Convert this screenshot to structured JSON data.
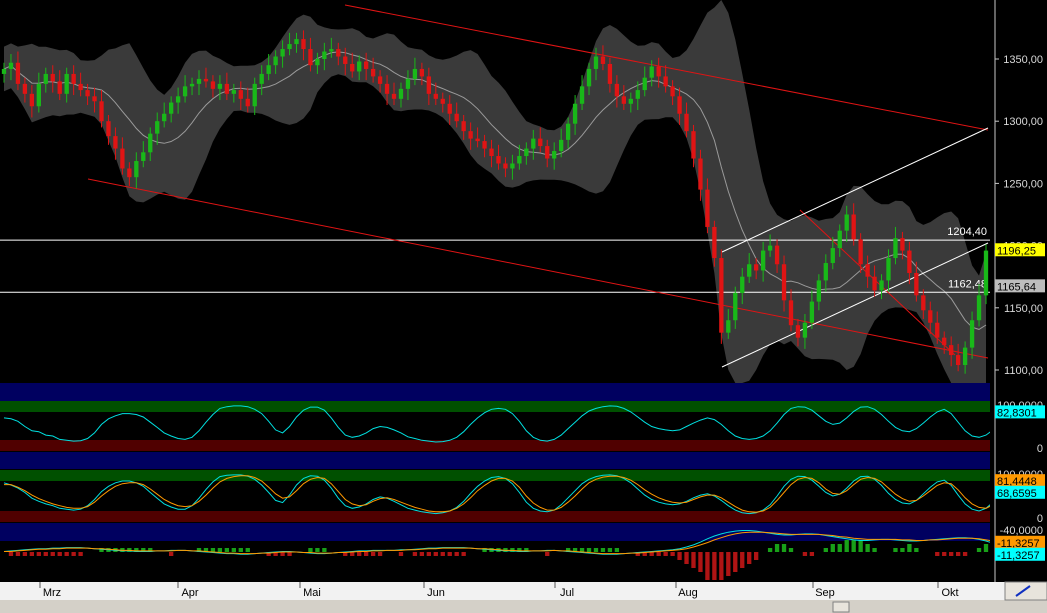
{
  "chart_data": [
    {
      "id": "price",
      "type": "candlestick",
      "y_ticks": [
        "1350,00",
        "1300,00",
        "1250,00",
        "1200,00",
        "1150,00",
        "1100,00"
      ],
      "ylim": [
        1090,
        1390
      ],
      "levels": [
        {
          "label": "1204,40",
          "value": 1204.4
        },
        {
          "label": "1162,48",
          "value": 1162.48
        }
      ],
      "last_price": "1196,25",
      "last_price_color": "#ffff00",
      "ma_badge": "1165,64",
      "ma_badge_color": "#bdbdbd",
      "band_color": "#3a3a3a",
      "up_color": "#19b819",
      "down_color": "#e01414",
      "trendline_color": "#e01414",
      "channel_color": "#ffffff",
      "x_months": [
        "Mrz",
        "Apr",
        "Mai",
        "Jun",
        "Jul",
        "Aug",
        "Sep",
        "Okt"
      ],
      "closes": [
        1342,
        1347,
        1330,
        1322,
        1312,
        1330,
        1338,
        1332,
        1322,
        1338,
        1330,
        1325,
        1320,
        1316,
        1300,
        1288,
        1278,
        1262,
        1255,
        1268,
        1275,
        1290,
        1300,
        1306,
        1315,
        1320,
        1328,
        1330,
        1334,
        1332,
        1326,
        1330,
        1322,
        1325,
        1318,
        1312,
        1330,
        1338,
        1345,
        1352,
        1358,
        1362,
        1366,
        1358,
        1345,
        1350,
        1356,
        1358,
        1352,
        1346,
        1340,
        1348,
        1342,
        1336,
        1330,
        1322,
        1318,
        1326,
        1334,
        1342,
        1336,
        1322,
        1318,
        1314,
        1306,
        1300,
        1292,
        1286,
        1284,
        1278,
        1272,
        1266,
        1262,
        1266,
        1272,
        1278,
        1286,
        1280,
        1270,
        1276,
        1285,
        1298,
        1314,
        1328,
        1342,
        1352,
        1346,
        1330,
        1320,
        1314,
        1318,
        1325,
        1335,
        1344,
        1336,
        1328,
        1320,
        1306,
        1292,
        1270,
        1245,
        1215,
        1190,
        1130,
        1140,
        1162,
        1175,
        1185,
        1180,
        1196,
        1200,
        1185,
        1156,
        1136,
        1126,
        1138,
        1155,
        1172,
        1186,
        1198,
        1212,
        1225,
        1205,
        1185,
        1175,
        1164,
        1172,
        1190,
        1206,
        1196,
        1178,
        1160,
        1148,
        1138,
        1126,
        1120,
        1112,
        1104,
        1118,
        1140,
        1160,
        1196
      ]
    },
    {
      "id": "osc1",
      "type": "line",
      "y_ticks": [
        "100,0000",
        "0"
      ],
      "ylim": [
        0,
        100
      ],
      "badge": "82,8301",
      "badge_color": "#00ffff",
      "line_color": "#00e0e0",
      "values": [
        70,
        68,
        62,
        50,
        40,
        38,
        30,
        28,
        20,
        18,
        16,
        17,
        22,
        35,
        55,
        68,
        75,
        80,
        80,
        78,
        72,
        60,
        48,
        35,
        28,
        22,
        20,
        25,
        40,
        60,
        78,
        92,
        96,
        98,
        98,
        96,
        90,
        80,
        62,
        42,
        35,
        50,
        72,
        88,
        95,
        95,
        88,
        70,
        48,
        30,
        25,
        28,
        35,
        45,
        50,
        48,
        42,
        35,
        26,
        22,
        18,
        16,
        14,
        15,
        18,
        25,
        38,
        55,
        70,
        82,
        90,
        92,
        90,
        80,
        62,
        40,
        25,
        18,
        16,
        20,
        30,
        45,
        60,
        75,
        86,
        92,
        96,
        98,
        97,
        92,
        84,
        72,
        60,
        50,
        45,
        42,
        40,
        42,
        50,
        58,
        65,
        70,
        66,
        55,
        40,
        28,
        22,
        20,
        22,
        28,
        40,
        58,
        78,
        92,
        96,
        95,
        88,
        75,
        62,
        55,
        58,
        70,
        85,
        95,
        96,
        90,
        78,
        62,
        48,
        40,
        38,
        45,
        58,
        72,
        84,
        90,
        80,
        60,
        40,
        28,
        25,
        30,
        42,
        58,
        75,
        83
      ]
    },
    {
      "id": "osc2",
      "type": "line",
      "y_ticks": [
        "100,0000",
        "0"
      ],
      "ylim": [
        0,
        100
      ],
      "badges": [
        {
          "label": "81,4448",
          "color": "#ff9900"
        },
        {
          "label": "68,6595",
          "color": "#00ffff"
        }
      ],
      "series": [
        {
          "color": "#00e0e0",
          "values": [
            80,
            75,
            68,
            58,
            45,
            38,
            32,
            28,
            22,
            20,
            18,
            20,
            28,
            42,
            60,
            72,
            80,
            84,
            84,
            80,
            72,
            58,
            45,
            32,
            25,
            20,
            20,
            28,
            45,
            65,
            82,
            94,
            97,
            98,
            98,
            95,
            88,
            75,
            58,
            40,
            35,
            52,
            75,
            90,
            96,
            95,
            86,
            68,
            45,
            28,
            22,
            25,
            32,
            42,
            48,
            45,
            38,
            30,
            22,
            18,
            14,
            12,
            10,
            12,
            16,
            24,
            38,
            56,
            72,
            84,
            92,
            94,
            90,
            78,
            58,
            36,
            22,
            16,
            14,
            18,
            30,
            46,
            62,
            78,
            88,
            94,
            97,
            98,
            96,
            90,
            80,
            66,
            52,
            42,
            36,
            32,
            30,
            32,
            38,
            46,
            52,
            55,
            50,
            40,
            28,
            18,
            12,
            10,
            12,
            18,
            30,
            50,
            72,
            88,
            95,
            94,
            86,
            72,
            58,
            50,
            54,
            68,
            84,
            94,
            95,
            88,
            74,
            56,
            42,
            34,
            32,
            40,
            55,
            70,
            82,
            86,
            74,
            52,
            32,
            20,
            16,
            22,
            36,
            52,
            62,
            69
          ]
        },
        {
          "color": "#ff9900",
          "values": [
            76,
            76,
            70,
            62,
            52,
            44,
            38,
            32,
            28,
            24,
            22,
            22,
            26,
            36,
            50,
            62,
            72,
            78,
            80,
            80,
            76,
            66,
            54,
            42,
            34,
            28,
            26,
            28,
            38,
            52,
            68,
            82,
            90,
            94,
            96,
            96,
            92,
            84,
            70,
            55,
            45,
            48,
            62,
            78,
            88,
            92,
            90,
            78,
            60,
            42,
            32,
            28,
            30,
            38,
            44,
            46,
            42,
            36,
            30,
            24,
            20,
            16,
            14,
            14,
            16,
            22,
            32,
            46,
            62,
            74,
            84,
            90,
            90,
            84,
            70,
            50,
            34,
            24,
            18,
            18,
            24,
            36,
            50,
            66,
            80,
            88,
            93,
            95,
            95,
            92,
            86,
            76,
            64,
            54,
            46,
            40,
            36,
            34,
            36,
            42,
            48,
            52,
            52,
            46,
            36,
            26,
            18,
            14,
            13,
            16,
            24,
            40,
            58,
            76,
            88,
            92,
            90,
            80,
            66,
            56,
            54,
            62,
            76,
            88,
            92,
            90,
            82,
            68,
            54,
            44,
            38,
            40,
            50,
            62,
            74,
            80,
            78,
            64,
            46,
            32,
            24,
            22,
            30,
            44,
            70,
            81
          ]
        }
      ]
    },
    {
      "id": "macd",
      "type": "line",
      "y_ticks": [
        "-40,0000"
      ],
      "ylim": [
        -42,
        6
      ],
      "badges": [
        {
          "label": "-11,3257",
          "color": "#ff9900"
        },
        {
          "label": "-11,3257",
          "color": "#00ffff"
        }
      ],
      "series": [
        {
          "name": "",
          "color": "#00e0e0",
          "values": [
            -1,
            -2,
            -3,
            -4,
            -5,
            -6,
            -6,
            -7,
            -7,
            -8,
            -8,
            -8,
            -7,
            -6,
            -5,
            -4,
            -3,
            -2,
            -2,
            -1,
            -1,
            -1,
            -2,
            -2,
            -3,
            -3,
            -3,
            -2,
            -1,
            0,
            1,
            2,
            3,
            3,
            4,
            4,
            3,
            2,
            1,
            0,
            -1,
            -1,
            0,
            1,
            2,
            3,
            3,
            2,
            1,
            0,
            -1,
            -2,
            -2,
            -3,
            -3,
            -3,
            -3,
            -4,
            -4,
            -5,
            -6,
            -7,
            -7,
            -8,
            -8,
            -8,
            -8,
            -7,
            -6,
            -5,
            -4,
            -3,
            -2,
            -2,
            -1,
            -1,
            -2,
            -2,
            -3,
            -3,
            -2,
            -1,
            0,
            1,
            2,
            3,
            4,
            4,
            4,
            3,
            2,
            1,
            0,
            -1,
            -2,
            -3,
            -4,
            -6,
            -9,
            -13,
            -18,
            -24,
            -29,
            -33,
            -36,
            -38,
            -39,
            -39,
            -38,
            -36,
            -34,
            -32,
            -31,
            -31,
            -32,
            -33,
            -33,
            -32,
            -30,
            -28,
            -26,
            -24,
            -22,
            -21,
            -21,
            -22,
            -23,
            -23,
            -22,
            -21,
            -20,
            -20,
            -21,
            -22,
            -23,
            -24,
            -25,
            -26,
            -26,
            -25,
            -23,
            -20,
            -16,
            -13,
            -12,
            -11
          ]
        },
        {
          "name": "",
          "color": "#ff9900",
          "values": [
            -1,
            -1,
            -2,
            -3,
            -4,
            -5,
            -5,
            -6,
            -6,
            -7,
            -7,
            -7,
            -7,
            -6,
            -6,
            -5,
            -4,
            -3,
            -3,
            -2,
            -2,
            -2,
            -2,
            -2,
            -2,
            -3,
            -3,
            -2,
            -2,
            -1,
            0,
            1,
            2,
            2,
            3,
            3,
            3,
            2,
            2,
            1,
            0,
            0,
            0,
            1,
            1,
            2,
            2,
            2,
            1,
            1,
            0,
            -1,
            -1,
            -2,
            -2,
            -3,
            -3,
            -3,
            -4,
            -4,
            -5,
            -6,
            -6,
            -7,
            -7,
            -7,
            -7,
            -7,
            -6,
            -6,
            -5,
            -4,
            -3,
            -3,
            -2,
            -2,
            -2,
            -2,
            -2,
            -3,
            -2,
            -2,
            -1,
            0,
            1,
            2,
            3,
            3,
            3,
            3,
            2,
            2,
            1,
            0,
            -1,
            -2,
            -3,
            -4,
            -6,
            -9,
            -13,
            -17,
            -22,
            -26,
            -30,
            -33,
            -35,
            -36,
            -36,
            -36,
            -35,
            -34,
            -33,
            -32,
            -32,
            -32,
            -32,
            -32,
            -31,
            -30,
            -28,
            -27,
            -25,
            -24,
            -23,
            -23,
            -23,
            -23,
            -23,
            -22,
            -22,
            -21,
            -21,
            -22,
            -22,
            -23,
            -24,
            -25,
            -25,
            -25,
            -24,
            -22,
            -20,
            -17,
            -15,
            -13,
            -11
          ]
        }
      ]
    }
  ]
}
